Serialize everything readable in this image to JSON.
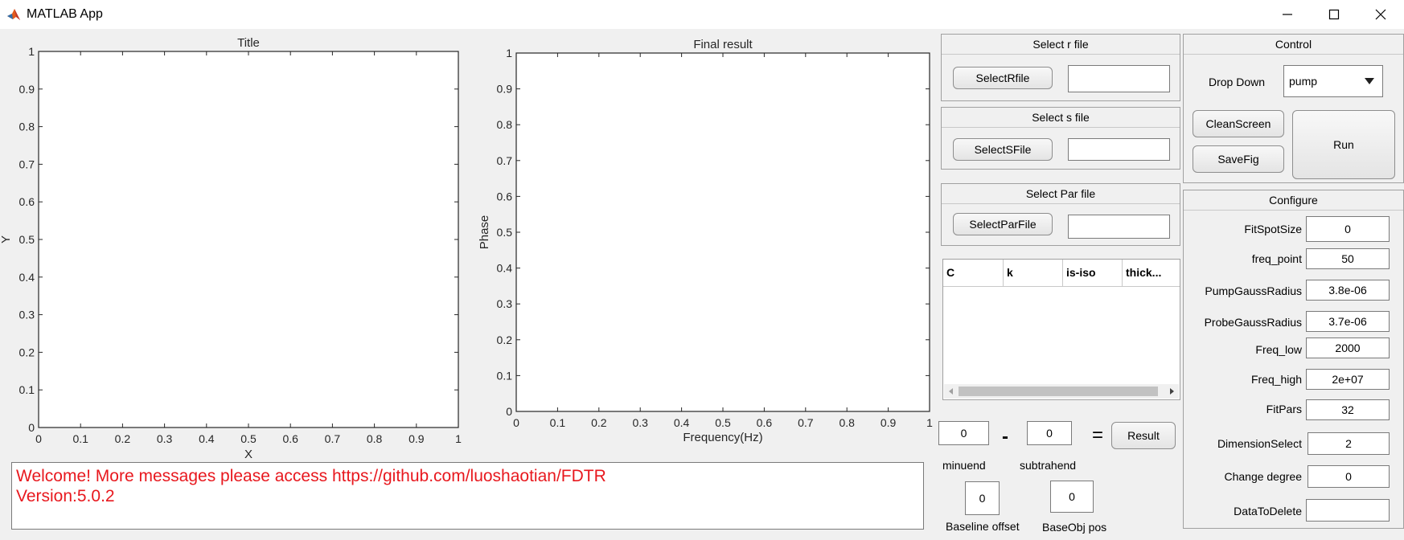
{
  "window": {
    "title": "MATLAB App",
    "controls": [
      "minimize",
      "maximize",
      "close"
    ]
  },
  "axes_left": {
    "title": "Title",
    "xlabel": "X",
    "ylabel": "Y",
    "xticks": [
      "0",
      "0.1",
      "0.2",
      "0.3",
      "0.4",
      "0.5",
      "0.6",
      "0.7",
      "0.8",
      "0.9",
      "1"
    ],
    "yticks": [
      "0",
      "0.1",
      "0.2",
      "0.3",
      "0.4",
      "0.5",
      "0.6",
      "0.7",
      "0.8",
      "0.9",
      "1"
    ]
  },
  "axes_right": {
    "title": "Final result",
    "xlabel": "Frequency(Hz)",
    "ylabel": "Phase",
    "xticks": [
      "0",
      "0.1",
      "0.2",
      "0.3",
      "0.4",
      "0.5",
      "0.6",
      "0.7",
      "0.8",
      "0.9",
      "1"
    ],
    "yticks": [
      "0",
      "0.1",
      "0.2",
      "0.3",
      "0.4",
      "0.5",
      "0.6",
      "0.7",
      "0.8",
      "0.9",
      "1"
    ]
  },
  "select_r": {
    "title": "Select r file",
    "button": "SelectRfile",
    "value": ""
  },
  "select_s": {
    "title": "Select s file",
    "button": "SelectSFile",
    "value": ""
  },
  "select_par": {
    "title": "Select Par file",
    "button": "SelectParFile",
    "value": ""
  },
  "table": {
    "columns": [
      "C",
      "k",
      "is-iso",
      "thick..."
    ]
  },
  "subtract": {
    "minuend_value": "0",
    "minus_symbol": "-",
    "subtrahend_value": "0",
    "equals_symbol": "=",
    "result_button": "Result",
    "minuend_label": "minuend",
    "subtrahend_label": "subtrahend",
    "baseline_value": "0",
    "baseline_label": "Baseline offset",
    "baseobj_value": "0",
    "baseobj_label": "BaseObj pos"
  },
  "control": {
    "title": "Control",
    "dropdown_label": "Drop Down",
    "dropdown_value": "pump",
    "clean_button": "CleanScreen",
    "save_button": "SaveFig",
    "run_button": "Run"
  },
  "configure": {
    "title": "Configure",
    "fields": [
      {
        "label": "FitSpotSize",
        "value": "0"
      },
      {
        "label": "freq_point",
        "value": "50"
      },
      {
        "label": "PumpGaussRadius",
        "value": "3.8e-06"
      },
      {
        "label": "ProbeGaussRadius",
        "value": "3.7e-06"
      },
      {
        "label": "Freq_low",
        "value": "2000"
      },
      {
        "label": "Freq_high",
        "value": "2e+07"
      },
      {
        "label": "FitPars",
        "value": "32"
      },
      {
        "label": "DimensionSelect",
        "value": "2"
      },
      {
        "label": "Change degree",
        "value": "0"
      },
      {
        "label": "DataToDelete",
        "value": ""
      }
    ]
  },
  "console": {
    "line1": "Welcome! More messages please access https://github.com/luoshaotian/FDTR",
    "line2": "Version:5.0.2"
  },
  "colors": {
    "console_text": "#e8181e",
    "background": "#f0f0f0",
    "axes_bg": "#ffffff"
  }
}
